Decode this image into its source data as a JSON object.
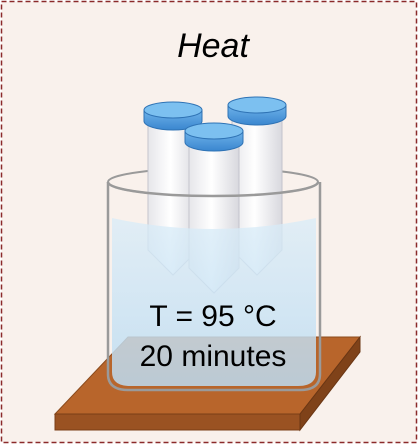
{
  "title": "Heat",
  "labels": [
    "T = 95 °C",
    "20 minutes"
  ]
}
